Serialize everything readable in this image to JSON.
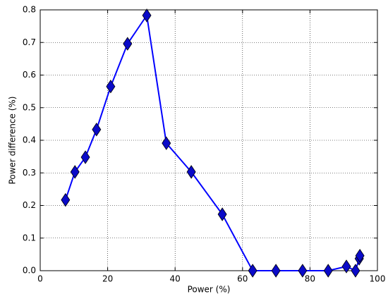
{
  "chart_data": {
    "type": "line",
    "x_label": "Power (%)",
    "y_label": "Power difference (%)",
    "x": [
      7.5,
      10.3,
      13.4,
      16.7,
      20.9,
      25.9,
      31.6,
      37.4,
      44.8,
      54.0,
      63.0,
      69.9,
      77.8,
      85.4,
      90.8,
      93.5,
      94.6,
      94.8
    ],
    "series": [
      {
        "name": "Power difference",
        "color": "#0000ff",
        "marker_color": "#0a0ac8",
        "values": [
          0.217,
          0.303,
          0.348,
          0.433,
          0.565,
          0.696,
          0.783,
          0.391,
          0.303,
          0.173,
          0.0,
          0.0,
          0.0,
          0.0,
          0.013,
          0.0,
          0.037,
          0.046
        ]
      }
    ],
    "xlim": [
      0,
      100
    ],
    "xticks": [
      0,
      20,
      40,
      60,
      80,
      100
    ],
    "ylim": [
      0,
      0.8
    ],
    "yticks": [
      {
        "value": 0,
        "label": "0.0"
      },
      0.1,
      0.2,
      0.3,
      0.4,
      0.5,
      0.6,
      0.7,
      0.8
    ],
    "grid": true
  }
}
